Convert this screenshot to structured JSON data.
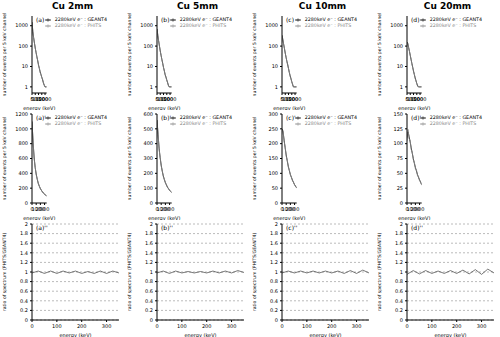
{
  "chart_data": [
    {
      "type": "line",
      "title": "Cu 2mm",
      "annotation": "(a)",
      "x_label": "energy (keV)",
      "y_label": "number of events per 5 keV channel",
      "log": "y",
      "legend": "upper right",
      "x": [
        0,
        125,
        250,
        375,
        500,
        625,
        750,
        875,
        1000,
        1125,
        1250,
        1375,
        1500,
        1625,
        1750,
        1875,
        2000,
        2125,
        2250
      ],
      "xlim": [
        0,
        2250
      ],
      "xticks": [
        0,
        500,
        1000,
        1500,
        2000
      ],
      "ylim": [
        0.5,
        3000
      ],
      "yticks": [
        1,
        10,
        100,
        1000
      ],
      "series": [
        {
          "name": "2280keV e⁻ : GEANT4",
          "color": "#000000",
          "values": [
            1500,
            520,
            260,
            140,
            80,
            48,
            30,
            19,
            12,
            8,
            5.5,
            4,
            3,
            2.2,
            1.6,
            1.2,
            1,
            1,
            1
          ]
        },
        {
          "name": "2280keV e⁻ : PHITS",
          "color": "#888888",
          "values": [
            1450,
            540,
            250,
            145,
            78,
            50,
            28,
            20,
            11,
            8.5,
            5,
            4.2,
            2.8,
            2.4,
            1.5,
            1.3,
            1,
            1,
            1
          ]
        }
      ]
    },
    {
      "type": "line",
      "title": "Cu 5mm",
      "annotation": "(b)",
      "x_label": "energy (keV)",
      "y_label": "number of events per 5 keV channel",
      "log": "y",
      "legend": "upper right",
      "x": [
        0,
        125,
        250,
        375,
        500,
        625,
        750,
        875,
        1000,
        1125,
        1250,
        1375,
        1500,
        1625,
        1750,
        1875,
        2000,
        2125,
        2250
      ],
      "xlim": [
        0,
        2250
      ],
      "xticks": [
        0,
        500,
        1000,
        1500,
        2000
      ],
      "ylim": [
        0.5,
        3000
      ],
      "yticks": [
        1,
        10,
        100,
        1000
      ],
      "series": [
        {
          "name": "2280keV e⁻ : GEANT4",
          "color": "#000000",
          "values": [
            700,
            330,
            180,
            100,
            58,
            35,
            22,
            14,
            9,
            6,
            4,
            3,
            2.2,
            1.6,
            1.2,
            1,
            1,
            1,
            1
          ]
        },
        {
          "name": "2280keV e⁻ : PHITS",
          "color": "#888888",
          "values": [
            680,
            340,
            175,
            105,
            56,
            36,
            21,
            15,
            8.5,
            6.2,
            3.8,
            3.1,
            2,
            1.7,
            1.1,
            1,
            1,
            1,
            1
          ]
        }
      ]
    },
    {
      "type": "line",
      "title": "Cu 10mm",
      "annotation": "(c)",
      "x_label": "energy (keV)",
      "y_label": "number of events per 5 keV channel",
      "log": "y",
      "legend": "upper right",
      "x": [
        0,
        125,
        250,
        375,
        500,
        625,
        750,
        875,
        1000,
        1125,
        1250,
        1375,
        1500,
        1625,
        1750,
        1875,
        2000,
        2125,
        2250
      ],
      "xlim": [
        0,
        2250
      ],
      "xticks": [
        0,
        500,
        1000,
        1500,
        2000
      ],
      "ylim": [
        0.5,
        3000
      ],
      "yticks": [
        1,
        10,
        100,
        1000
      ],
      "series": [
        {
          "name": "2280keV e⁻ : GEANT4",
          "color": "#000000",
          "values": [
            340,
            210,
            125,
            75,
            45,
            28,
            18,
            12,
            8,
            5,
            3.5,
            2.5,
            1.8,
            1.3,
            1,
            1,
            1,
            1,
            1
          ]
        },
        {
          "name": "2280keV e⁻ : PHITS",
          "color": "#888888",
          "values": [
            330,
            215,
            120,
            78,
            44,
            29,
            17,
            12.5,
            7.5,
            5.3,
            3.3,
            2.7,
            1.7,
            1.4,
            1,
            1,
            1,
            1,
            1
          ]
        }
      ]
    },
    {
      "type": "line",
      "title": "Cu 20mm",
      "annotation": "(d)",
      "x_label": "energy (keV)",
      "y_label": "number of events per 5 keV channel",
      "log": "y",
      "legend": "upper right",
      "x": [
        0,
        125,
        250,
        375,
        500,
        625,
        750,
        875,
        1000,
        1125,
        1250,
        1375,
        1500,
        1625,
        1750,
        1875,
        2000,
        2125,
        2250
      ],
      "xlim": [
        0,
        2250
      ],
      "xticks": [
        0,
        500,
        1000,
        1500,
        2000
      ],
      "ylim": [
        0.5,
        3000
      ],
      "yticks": [
        1,
        10,
        100,
        1000
      ],
      "series": [
        {
          "name": "2280keV e⁻ : GEANT4",
          "color": "#000000",
          "values": [
            160,
            130,
            85,
            55,
            35,
            22,
            14,
            9,
            6,
            4,
            2.8,
            2,
            1.5,
            1.1,
            1,
            1,
            1,
            1,
            1
          ]
        },
        {
          "name": "2280keV e⁻ : PHITS",
          "color": "#888888",
          "values": [
            155,
            135,
            82,
            57,
            34,
            23,
            13,
            9.5,
            5.6,
            4.3,
            2.6,
            2.1,
            1.4,
            1.2,
            1,
            1,
            1,
            1,
            1
          ]
        }
      ]
    },
    {
      "type": "line",
      "annotation": "(a)'",
      "x_label": "energy (keV)",
      "y_label": "number of events per 5 keV channel",
      "legend": "upper right",
      "x": [
        0,
        25,
        50,
        75,
        100,
        125,
        150,
        175,
        200,
        225,
        250,
        275,
        300,
        325,
        350
      ],
      "xlim": [
        0,
        350
      ],
      "xticks": [
        0,
        100,
        200,
        300
      ],
      "ylim": [
        0,
        1200
      ],
      "yticks": [
        0,
        200,
        400,
        600,
        800,
        1000,
        1200
      ],
      "series": [
        {
          "name": "2280keV e⁻ : GEANT4",
          "color": "#000000",
          "values": [
            1100,
            820,
            620,
            480,
            390,
            320,
            265,
            225,
            195,
            170,
            150,
            132,
            118,
            106,
            96
          ]
        },
        {
          "name": "2280keV e⁻ : PHITS",
          "color": "#888888",
          "values": [
            1080,
            840,
            600,
            490,
            380,
            325,
            260,
            230,
            190,
            172,
            146,
            135,
            115,
            108,
            94
          ]
        }
      ]
    },
    {
      "type": "line",
      "annotation": "(b)'",
      "x_label": "energy (keV)",
      "y_label": "number of events per 5 keV channel",
      "legend": "upper right",
      "x": [
        0,
        25,
        50,
        75,
        100,
        125,
        150,
        175,
        200,
        225,
        250,
        275,
        300,
        325,
        350
      ],
      "xlim": [
        0,
        350
      ],
      "xticks": [
        0,
        100,
        200,
        300
      ],
      "ylim": [
        0,
        600
      ],
      "yticks": [
        0,
        100,
        200,
        300,
        400,
        500,
        600
      ],
      "series": [
        {
          "name": "2280keV e⁻ : GEANT4",
          "color": "#000000",
          "values": [
            560,
            460,
            370,
            305,
            255,
            215,
            183,
            158,
            138,
            121,
            107,
            96,
            86,
            78,
            71
          ]
        },
        {
          "name": "2280keV e⁻ : PHITS",
          "color": "#888888",
          "values": [
            550,
            470,
            360,
            310,
            250,
            218,
            180,
            160,
            135,
            124,
            105,
            98,
            84,
            80,
            70
          ]
        }
      ]
    },
    {
      "type": "line",
      "annotation": "(c)'",
      "x_label": "energy (keV)",
      "y_label": "number of events per 5 keV channel",
      "legend": "upper right",
      "x": [
        0,
        25,
        50,
        75,
        100,
        125,
        150,
        175,
        200,
        225,
        250,
        275,
        300,
        325,
        350
      ],
      "xlim": [
        0,
        350
      ],
      "xticks": [
        0,
        100,
        200,
        300
      ],
      "ylim": [
        0,
        300
      ],
      "yticks": [
        0,
        50,
        100,
        150,
        200,
        250,
        300
      ],
      "series": [
        {
          "name": "2280keV e⁻ : GEANT4",
          "color": "#000000",
          "values": [
            250,
            240,
            212,
            186,
            162,
            142,
            124,
            109,
            96,
            86,
            77,
            69,
            62,
            56,
            51
          ]
        },
        {
          "name": "2280keV e⁻ : PHITS",
          "color": "#888888",
          "values": [
            245,
            245,
            208,
            190,
            158,
            145,
            121,
            111,
            94,
            88,
            75,
            71,
            60,
            58,
            50
          ]
        }
      ]
    },
    {
      "type": "line",
      "annotation": "(d)'",
      "x_label": "energy (keV)",
      "y_label": "number of events per 5 keV channel",
      "legend": "upper right",
      "x": [
        0,
        25,
        50,
        75,
        100,
        125,
        150,
        175,
        200,
        225,
        250,
        275,
        300,
        325,
        350
      ],
      "xlim": [
        0,
        350
      ],
      "xticks": [
        0,
        100,
        200,
        300
      ],
      "ylim": [
        0,
        150
      ],
      "yticks": [
        0,
        25,
        50,
        75,
        100,
        125,
        150
      ],
      "series": [
        {
          "name": "2280keV e⁻ : GEANT4",
          "color": "#000000",
          "values": [
            110,
            120,
            112,
            103,
            93,
            84,
            75,
            67,
            60,
            54,
            48,
            43,
            39,
            35,
            31
          ]
        },
        {
          "name": "2280keV e⁻ : PHITS",
          "color": "#888888",
          "values": [
            105,
            124,
            108,
            106,
            90,
            86,
            73,
            69,
            58,
            56,
            46,
            45,
            37,
            36,
            30
          ]
        }
      ]
    },
    {
      "type": "line",
      "annotation": "(a)''",
      "x_label": "energy (keV)",
      "y_label": "ratio of spectrum (PHITS/GEANT4)",
      "grid": true,
      "x": [
        0,
        25,
        50,
        75,
        100,
        125,
        150,
        175,
        200,
        225,
        250,
        275,
        300,
        325,
        350
      ],
      "xlim": [
        0,
        350
      ],
      "xticks": [
        0,
        100,
        200,
        300
      ],
      "ylim": [
        0,
        2
      ],
      "yticks": [
        0,
        0.2,
        0.4,
        0.6,
        0.8,
        1,
        1.2,
        1.4,
        1.6,
        1.8,
        2
      ],
      "series": [
        {
          "color": "#555555",
          "values": [
            0.98,
            1.02,
            0.97,
            1.02,
            0.97,
            1.02,
            0.98,
            1.02,
            0.97,
            1.01,
            0.97,
            1.02,
            0.97,
            1.02,
            0.98
          ]
        }
      ]
    },
    {
      "type": "line",
      "annotation": "(b)''",
      "x_label": "energy (keV)",
      "y_label": "ratio of spectrum (PHITS/GEANT4)",
      "grid": true,
      "x": [
        0,
        25,
        50,
        75,
        100,
        125,
        150,
        175,
        200,
        225,
        250,
        275,
        300,
        325,
        350
      ],
      "xlim": [
        0,
        350
      ],
      "xticks": [
        0,
        100,
        200,
        300
      ],
      "ylim": [
        0,
        2
      ],
      "yticks": [
        0,
        0.2,
        0.4,
        0.6,
        0.8,
        1,
        1.2,
        1.4,
        1.6,
        1.8,
        2
      ],
      "series": [
        {
          "color": "#555555",
          "values": [
            0.98,
            1.02,
            0.97,
            1.02,
            0.98,
            1.01,
            0.98,
            1.01,
            0.98,
            1.02,
            0.98,
            1.02,
            0.98,
            1.03,
            0.99
          ]
        }
      ]
    },
    {
      "type": "line",
      "annotation": "(c)''",
      "x_label": "energy (keV)",
      "y_label": "ratio of spectrum (PHITS/GEANT4)",
      "grid": true,
      "x": [
        0,
        25,
        50,
        75,
        100,
        125,
        150,
        175,
        200,
        225,
        250,
        275,
        300,
        325,
        350
      ],
      "xlim": [
        0,
        350
      ],
      "xticks": [
        0,
        100,
        200,
        300
      ],
      "ylim": [
        0,
        2
      ],
      "yticks": [
        0,
        0.2,
        0.4,
        0.6,
        0.8,
        1,
        1.2,
        1.4,
        1.6,
        1.8,
        2
      ],
      "series": [
        {
          "color": "#555555",
          "values": [
            0.98,
            1.02,
            0.98,
            1.02,
            0.98,
            1.02,
            0.98,
            1.02,
            0.98,
            1.02,
            0.97,
            1.03,
            0.97,
            1.04,
            0.98
          ]
        }
      ]
    },
    {
      "type": "line",
      "annotation": "(d)''",
      "x_label": "energy (keV)",
      "y_label": "ratio of spectrum (PHITS/GEANT4)",
      "grid": true,
      "x": [
        0,
        25,
        50,
        75,
        100,
        125,
        150,
        175,
        200,
        225,
        250,
        275,
        300,
        325,
        350
      ],
      "xlim": [
        0,
        350
      ],
      "xticks": [
        0,
        100,
        200,
        300
      ],
      "ylim": [
        0,
        2
      ],
      "yticks": [
        0,
        0.2,
        0.4,
        0.6,
        0.8,
        1,
        1.2,
        1.4,
        1.6,
        1.8,
        2
      ],
      "series": [
        {
          "color": "#555555",
          "values": [
            0.95,
            1.03,
            0.96,
            1.03,
            0.97,
            1.02,
            0.97,
            1.03,
            0.97,
            1.04,
            0.96,
            1.05,
            0.95,
            1.06,
            0.98
          ]
        }
      ]
    }
  ]
}
